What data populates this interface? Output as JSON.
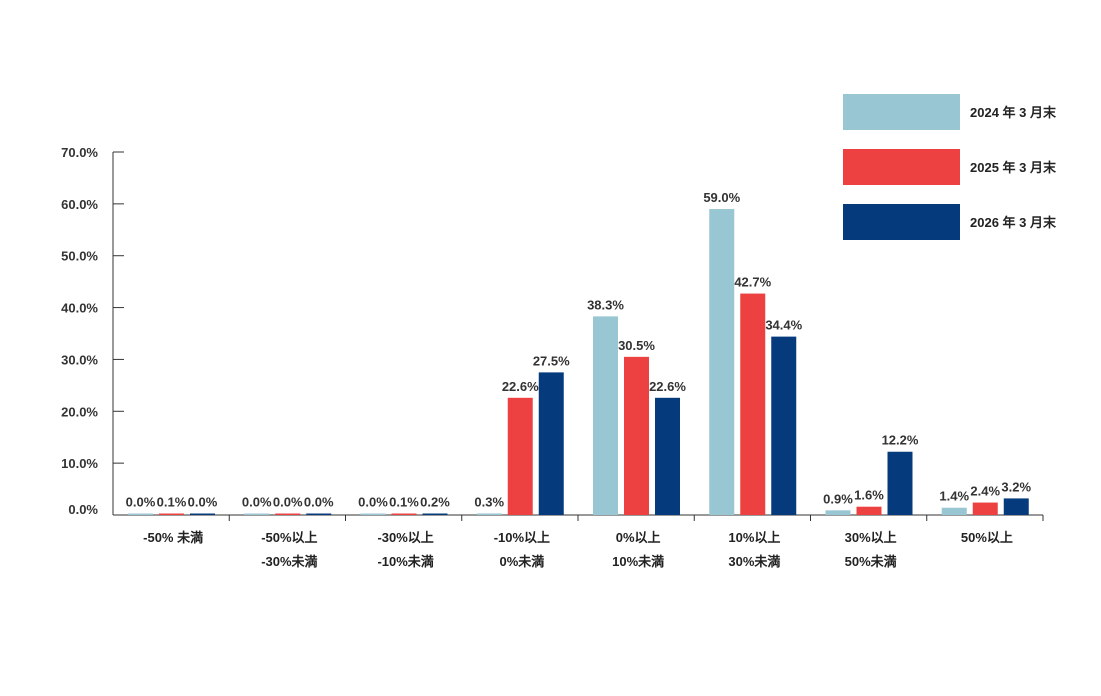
{
  "chart_data": {
    "type": "bar",
    "categories": [
      [
        "-50% 未満"
      ],
      [
        "-50%以上",
        "-30%未満"
      ],
      [
        "-30%以上",
        "-10%未満"
      ],
      [
        "-10%以上",
        "0%未満"
      ],
      [
        "0%以上",
        "10%未満"
      ],
      [
        "10%以上",
        "30%未満"
      ],
      [
        "30%以上",
        "50%未満"
      ],
      [
        "50%以上"
      ]
    ],
    "series": [
      {
        "name": "2024 年 3 月末",
        "color": "#98c6d2",
        "values": [
          0.0,
          0.0,
          0.0,
          0.3,
          38.3,
          59.0,
          0.9,
          1.4
        ],
        "labels": [
          "0.0%",
          "0.0%",
          "0.0%",
          "0.3%",
          "38.3%",
          "59.0%",
          "0.9%",
          "1.4%"
        ]
      },
      {
        "name": "2025 年 3 月末",
        "color": "#ed4040",
        "values": [
          0.1,
          0.0,
          0.1,
          22.6,
          30.5,
          42.7,
          1.6,
          2.4
        ],
        "labels": [
          "0.1%",
          "0.0%",
          "0.1%",
          "22.6%",
          "30.5%",
          "42.7%",
          "1.6%",
          "2.4%"
        ]
      },
      {
        "name": "2026 年 3 月末",
        "color": "#053a7c",
        "values": [
          0.0,
          0.0,
          0.2,
          27.5,
          22.6,
          34.4,
          12.2,
          3.2
        ],
        "labels": [
          "0.0%",
          "0.0%",
          "0.2%",
          "27.5%",
          "22.6%",
          "34.4%",
          "12.2%",
          "3.2%"
        ]
      }
    ],
    "yticks": [
      "0.0%",
      "10.0%",
      "20.0%",
      "30.0%",
      "40.0%",
      "50.0%",
      "60.0%",
      "70.0%"
    ],
    "ylim": [
      0,
      70
    ],
    "title": "",
    "xlabel": "",
    "ylabel": "",
    "legend_position": "top-right",
    "grid": false
  }
}
